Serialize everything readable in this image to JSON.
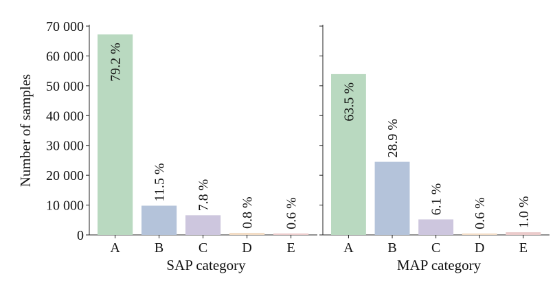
{
  "chart_data": [
    {
      "type": "bar",
      "xlabel": "SAP category",
      "ylabel": "Number of samples",
      "categories": [
        "A",
        "B",
        "C",
        "D",
        "E"
      ],
      "values": [
        67200,
        9800,
        6600,
        700,
        500
      ],
      "labels": [
        "79.2 %",
        "11.5 %",
        "7.8 %",
        "0.8 %",
        "0.6 %"
      ],
      "ylim": [
        0,
        70000
      ],
      "yticks": [
        0,
        10000,
        20000,
        30000,
        40000,
        50000,
        60000,
        70000
      ],
      "ytick_labels": [
        "0",
        "10 000",
        "20 000",
        "30 000",
        "40 000",
        "50 000",
        "60 000",
        "70 000"
      ],
      "colors": [
        "#b9d9c0",
        "#b4c3da",
        "#cdc6de",
        "#f2dcc5",
        "#ebcbcb"
      ],
      "grid": false
    },
    {
      "type": "bar",
      "xlabel": "MAP category",
      "categories": [
        "A",
        "B",
        "C",
        "D",
        "E"
      ],
      "values": [
        53900,
        24500,
        5200,
        500,
        900
      ],
      "labels": [
        "63.5 %",
        "28.9 %",
        "6.1 %",
        "0.6 %",
        "1.0 %"
      ],
      "ylim": [
        0,
        70000
      ],
      "yticks": [
        0,
        10000,
        20000,
        30000,
        40000,
        50000,
        60000,
        70000
      ],
      "colors": [
        "#b9d9c0",
        "#b4c3da",
        "#cdc6de",
        "#f2dcc5",
        "#ebcbcb"
      ],
      "grid": false,
      "shared_y": true
    }
  ]
}
